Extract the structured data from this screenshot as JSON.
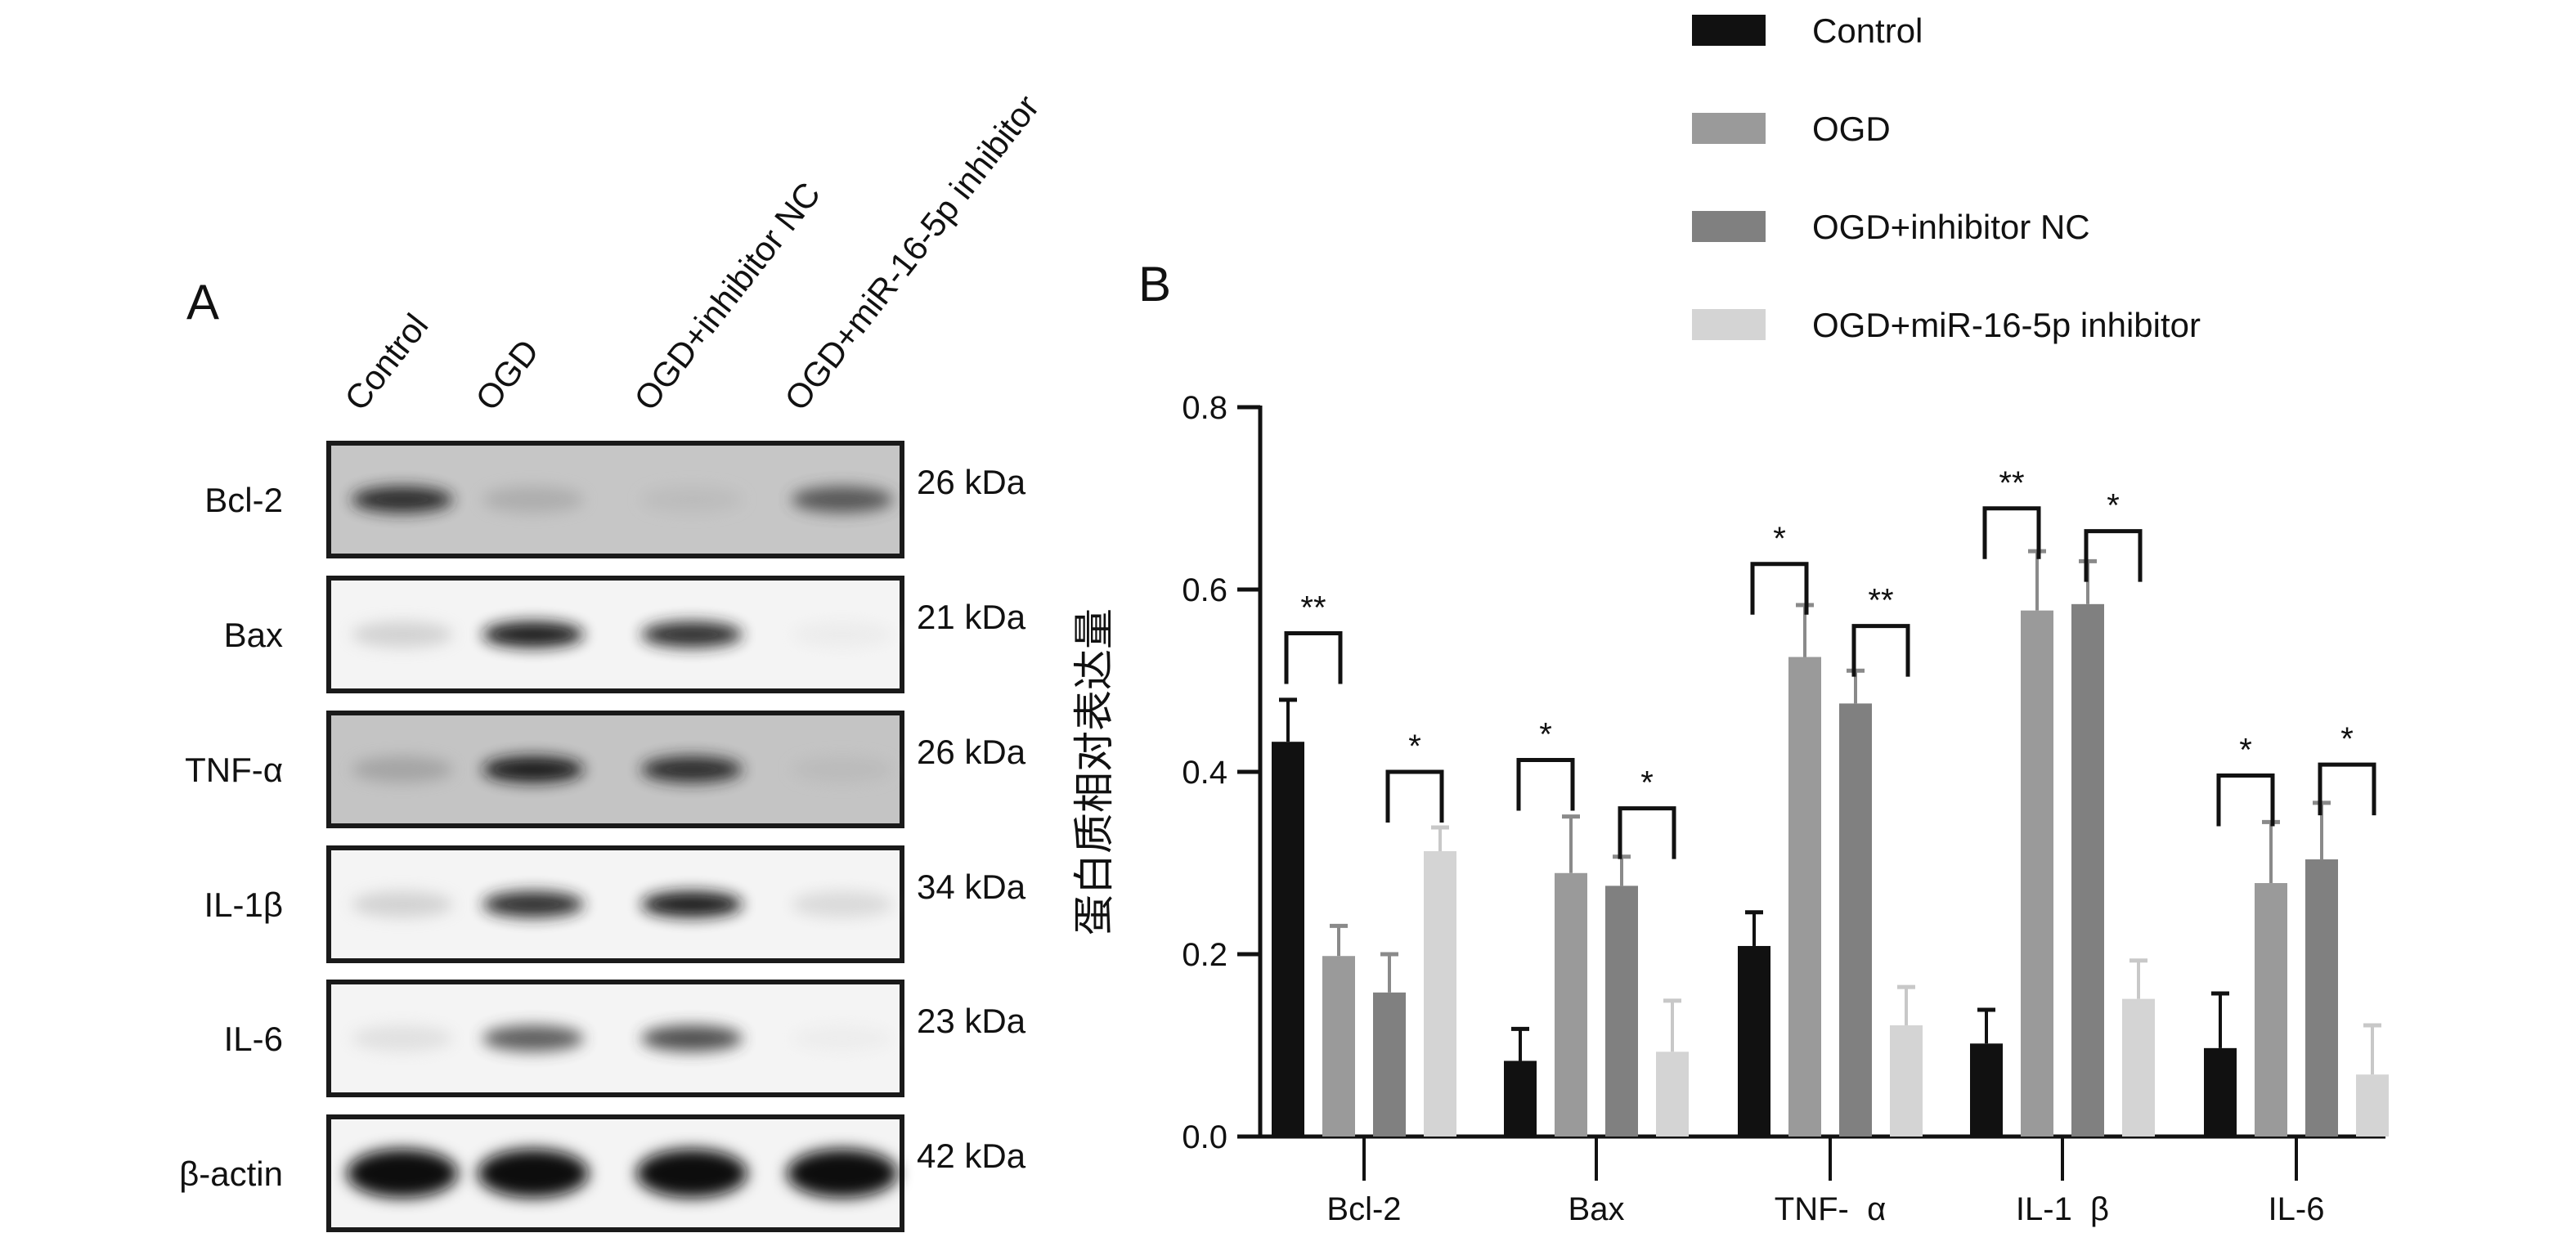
{
  "panel_a": {
    "label": "A",
    "lanes": [
      "Control",
      "OGD",
      "OGD+inhibitor NC",
      "OGD+miR-16-5p inhibitor"
    ],
    "rows": [
      {
        "protein": "Bcl-2",
        "size": "26 kDa",
        "background": "#c6c6c6",
        "band_intensity": [
          0.9,
          0.35,
          0.25,
          0.75
        ]
      },
      {
        "protein": "Bax",
        "size": "21 kDa",
        "background": "#f4f4f4",
        "band_intensity": [
          0.25,
          0.95,
          0.9,
          0.05
        ]
      },
      {
        "protein": "TNF-α",
        "size": "26 kDa",
        "background": "#c4c4c4",
        "band_intensity": [
          0.4,
          0.95,
          0.9,
          0.25
        ]
      },
      {
        "protein": "IL-1β",
        "size": "34 kDa",
        "background": "#f4f4f4",
        "band_intensity": [
          0.25,
          0.9,
          0.95,
          0.2
        ]
      },
      {
        "protein": "IL-6",
        "size": "23 kDa",
        "background": "#f4f4f4",
        "band_intensity": [
          0.15,
          0.75,
          0.8,
          0.04
        ]
      },
      {
        "protein": "β-actin",
        "size": "42 kDa",
        "background": "#f4f4f4",
        "band_intensity": [
          1,
          1,
          1,
          1
        ]
      }
    ]
  },
  "chart_data": {
    "type": "bar",
    "panel_label": "B",
    "ylabel": "蛋白质相对表达量",
    "xlabel": "",
    "ylim": [
      0,
      0.8
    ],
    "yticks": [
      "0.0",
      "0.2",
      "0.4",
      "0.6",
      "0.8"
    ],
    "categories": [
      "Bcl-2",
      "Bax",
      "TNF-  α",
      "IL-1  β",
      "IL-6"
    ],
    "legend_position": "top-right",
    "series": [
      {
        "name": "Control",
        "color": "#111111",
        "values": [
          0.433,
          0.083,
          0.209,
          0.102,
          0.097
        ],
        "error": [
          0.046,
          0.035,
          0.037,
          0.037,
          0.06
        ]
      },
      {
        "name": "OGD",
        "color": "#9a9a9a",
        "values": [
          0.198,
          0.289,
          0.526,
          0.577,
          0.278
        ],
        "error": [
          0.033,
          0.062,
          0.057,
          0.065,
          0.067
        ]
      },
      {
        "name": "OGD+inhibitor NC",
        "color": "#808080",
        "values": [
          0.158,
          0.275,
          0.475,
          0.584,
          0.304
        ],
        "error": [
          0.042,
          0.032,
          0.036,
          0.047,
          0.062
        ]
      },
      {
        "name": "OGD+miR-16-5p inhibitor",
        "color": "#d4d4d4",
        "values": [
          0.313,
          0.093,
          0.122,
          0.151,
          0.068
        ],
        "error": [
          0.026,
          0.056,
          0.042,
          0.042,
          0.054
        ]
      }
    ],
    "significance": [
      {
        "category": 0,
        "pair": [
          0,
          1
        ],
        "label": "**",
        "y": 0.552
      },
      {
        "category": 0,
        "pair": [
          2,
          3
        ],
        "label": "*",
        "y": 0.4
      },
      {
        "category": 1,
        "pair": [
          0,
          1
        ],
        "label": "*",
        "y": 0.413
      },
      {
        "category": 1,
        "pair": [
          2,
          3
        ],
        "label": "*",
        "y": 0.36
      },
      {
        "category": 2,
        "pair": [
          0,
          1
        ],
        "label": "*",
        "y": 0.628
      },
      {
        "category": 2,
        "pair": [
          2,
          3
        ],
        "label": "**",
        "y": 0.56
      },
      {
        "category": 3,
        "pair": [
          0,
          1
        ],
        "label": "**",
        "y": 0.689
      },
      {
        "category": 3,
        "pair": [
          2,
          3
        ],
        "label": "*",
        "y": 0.664
      },
      {
        "category": 4,
        "pair": [
          0,
          1
        ],
        "label": "*",
        "y": 0.396
      },
      {
        "category": 4,
        "pair": [
          2,
          3
        ],
        "label": "*",
        "y": 0.408
      }
    ]
  }
}
